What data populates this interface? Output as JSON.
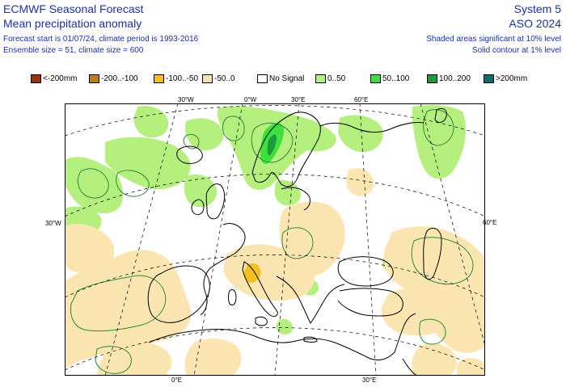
{
  "header": {
    "title": "ECMWF Seasonal Forecast",
    "subtitle": "Mean precipitation anomaly",
    "forecast_info": "Forecast start is 01/07/24, climate period is 1993-2016",
    "ensemble_info": "Ensemble size = 51, climate size = 600",
    "system": "System 5",
    "season": "ASO 2024",
    "shading_note": "Shaded areas significant at 10% level",
    "contour_note": "Solid contour at 1% level"
  },
  "legend": [
    {
      "label": "<-200mm",
      "color": "#993404"
    },
    {
      "label": "-200..-100",
      "color": "#c07f12"
    },
    {
      "label": "-100..-50",
      "color": "#f4c01f"
    },
    {
      "label": "-50..0",
      "color": "#fbe6b2"
    },
    {
      "label": "No Signal",
      "color": "#ffffff"
    },
    {
      "label": "0..50",
      "color": "#b5ef7e"
    },
    {
      "label": "50..100",
      "color": "#3ee03e"
    },
    {
      "label": "100..200",
      "color": "#1a9c3a"
    },
    {
      "label": ">200mm",
      "color": "#0e6b6e"
    }
  ],
  "map": {
    "lon_labels_top": [
      "30°W",
      "0°W",
      "30°E",
      "60°E"
    ],
    "lon_labels_bottom": [
      "0°E",
      "30°E"
    ],
    "left_label": "30°W",
    "right_label": "60°E",
    "colors": {
      "dry_light": "#fbe6b2",
      "dry_medium": "#f4c01f",
      "wet_light": "#b5ef7e",
      "wet_medium": "#3ee03e",
      "wet_strong": "#1a9c3a",
      "contour": "#2d8a3a",
      "coast": "#000000",
      "grid": "#000000"
    }
  }
}
